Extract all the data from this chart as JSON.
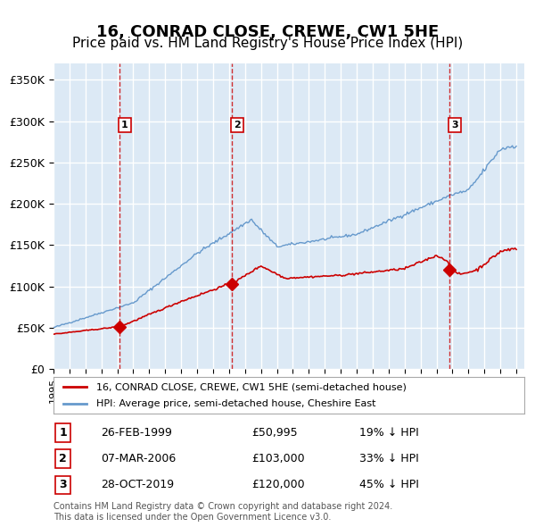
{
  "title": "16, CONRAD CLOSE, CREWE, CW1 5HE",
  "subtitle": "Price paid vs. HM Land Registry's House Price Index (HPI)",
  "title_fontsize": 13,
  "subtitle_fontsize": 11,
  "background_color": "#ffffff",
  "plot_bg_color": "#dce9f5",
  "grid_color": "#ffffff",
  "ylim": [
    0,
    370000
  ],
  "yticks": [
    0,
    50000,
    100000,
    150000,
    200000,
    250000,
    300000,
    350000
  ],
  "ytick_labels": [
    "£0",
    "£50K",
    "£100K",
    "£150K",
    "£200K",
    "£250K",
    "£300K",
    "£350K"
  ],
  "year_start": 1995,
  "year_end": 2024,
  "red_line_color": "#cc0000",
  "blue_line_color": "#6699cc",
  "purchase_marker_color": "#cc0000",
  "vline_color": "#cc0000",
  "vline_style": "--",
  "legend_label_red": "16, CONRAD CLOSE, CREWE, CW1 5HE (semi-detached house)",
  "legend_label_blue": "HPI: Average price, semi-detached house, Cheshire East",
  "purchases": [
    {
      "num": 1,
      "date": "26-FEB-1999",
      "price": 50995,
      "year": 1999.15,
      "note": "19% ↓ HPI"
    },
    {
      "num": 2,
      "date": "07-MAR-2006",
      "price": 103000,
      "year": 2006.18,
      "note": "33% ↓ HPI"
    },
    {
      "num": 3,
      "date": "28-OCT-2019",
      "price": 120000,
      "year": 2019.82,
      "note": "45% ↓ HPI"
    }
  ],
  "footer": "Contains HM Land Registry data © Crown copyright and database right 2024.\nThis data is licensed under the Open Government Licence v3.0."
}
